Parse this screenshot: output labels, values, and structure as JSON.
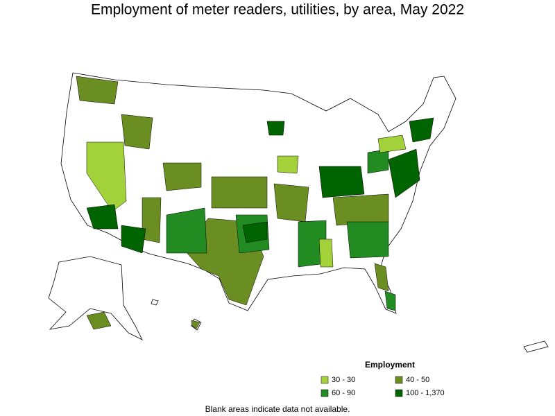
{
  "title": "Employment of meter readers, utilities, by area, May 2022",
  "legend": {
    "title": "Employment",
    "items": [
      {
        "label": "30 - 30",
        "color": "#a3d13a"
      },
      {
        "label": "40 - 50",
        "color": "#6b8e23"
      },
      {
        "label": "60 - 90",
        "color": "#228b22"
      },
      {
        "label": "100 - 1,370",
        "color": "#006400"
      }
    ]
  },
  "footnote": "Blank areas indicate data not available."
}
